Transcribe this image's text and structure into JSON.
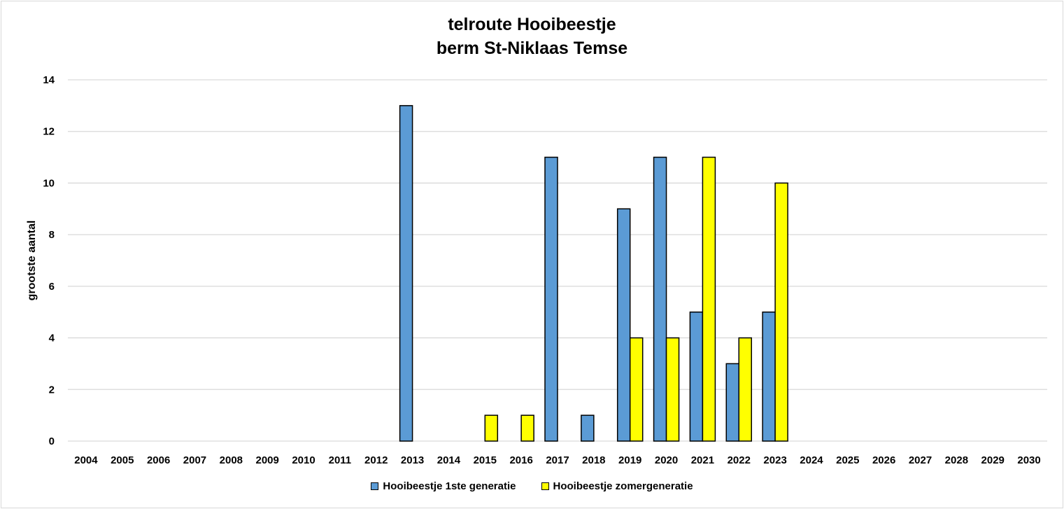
{
  "chart_data": {
    "type": "bar",
    "title_lines": [
      "telroute Hooibeestje",
      "berm St-Niklaas Temse"
    ],
    "xlabel": "",
    "ylabel": "grootste aantal",
    "ylim": [
      0,
      14
    ],
    "yticks": [
      0,
      2,
      4,
      6,
      8,
      10,
      12,
      14
    ],
    "grid": true,
    "legend_position": "bottom",
    "categories": [
      "2004",
      "2005",
      "2006",
      "2007",
      "2008",
      "2009",
      "2010",
      "2011",
      "2012",
      "2013",
      "2014",
      "2015",
      "2016",
      "2017",
      "2018",
      "2019",
      "2020",
      "2021",
      "2022",
      "2023",
      "2024",
      "2025",
      "2026",
      "2027",
      "2028",
      "2029",
      "2030"
    ],
    "series": [
      {
        "name": "Hooibeestje 1ste generatie",
        "color": "#5b9bd5",
        "values": [
          null,
          null,
          null,
          null,
          null,
          null,
          null,
          null,
          null,
          13,
          null,
          null,
          null,
          11,
          1,
          9,
          11,
          5,
          3,
          5,
          null,
          null,
          null,
          null,
          null,
          null,
          null
        ]
      },
      {
        "name": "Hooibeestje zomergeneratie",
        "color": "#ffff00",
        "values": [
          null,
          null,
          null,
          null,
          null,
          null,
          null,
          null,
          null,
          null,
          null,
          1,
          1,
          null,
          null,
          4,
          4,
          11,
          4,
          10,
          null,
          null,
          null,
          null,
          null,
          null,
          null
        ]
      }
    ]
  }
}
